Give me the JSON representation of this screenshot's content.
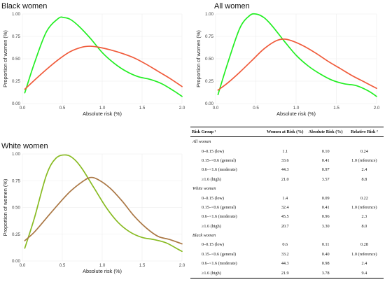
{
  "colors": {
    "green": "#22ee22",
    "red": "#f05a3a",
    "olive_green": "#88bb22",
    "brown": "#aa7744"
  },
  "chart_data": [
    {
      "type": "line",
      "title": "Black women",
      "xlabel": "Absolute risk (%)",
      "ylabel": "Proportion of women (%)",
      "xlim": [
        0,
        2.0
      ],
      "ylim": [
        0,
        1.0
      ],
      "xticks": [
        "0.0",
        "0.5",
        "1.0",
        "1.5",
        "2.0"
      ],
      "yticks": [
        "0.00",
        "0.25",
        "0.50",
        "0.75",
        "1.00"
      ],
      "grid": true,
      "series": [
        {
          "color": "#22ee22",
          "x": [
            0.03,
            0.15,
            0.3,
            0.45,
            0.52,
            0.6,
            0.7,
            0.85,
            1.0,
            1.15,
            1.3,
            1.45,
            1.6,
            1.75,
            1.9,
            2.0
          ],
          "y": [
            0.12,
            0.45,
            0.8,
            0.95,
            0.96,
            0.94,
            0.87,
            0.73,
            0.57,
            0.45,
            0.36,
            0.3,
            0.27,
            0.22,
            0.14,
            0.08
          ]
        },
        {
          "color": "#f05a3a",
          "x": [
            0.03,
            0.15,
            0.3,
            0.45,
            0.6,
            0.75,
            0.85,
            0.95,
            1.1,
            1.25,
            1.4,
            1.55,
            1.7,
            1.85,
            2.0
          ],
          "y": [
            0.16,
            0.26,
            0.38,
            0.49,
            0.58,
            0.63,
            0.64,
            0.63,
            0.6,
            0.56,
            0.51,
            0.44,
            0.36,
            0.28,
            0.19
          ]
        }
      ]
    },
    {
      "type": "line",
      "title": "All women",
      "xlabel": "Absolute risk (%)",
      "ylabel": "Proportion of women (%)",
      "xlim": [
        0,
        2.0
      ],
      "ylim": [
        0,
        1.0
      ],
      "xticks": [
        "0.0",
        "0.5",
        "1.0",
        "1.5",
        "2.0"
      ],
      "yticks": [
        "0.00",
        "0.25",
        "0.50",
        "0.75",
        "1.00"
      ],
      "grid": true,
      "series": [
        {
          "color": "#22ee22",
          "x": [
            0.03,
            0.15,
            0.3,
            0.42,
            0.5,
            0.6,
            0.7,
            0.85,
            1.0,
            1.15,
            1.3,
            1.45,
            1.6,
            1.75,
            1.9,
            2.0
          ],
          "y": [
            0.1,
            0.45,
            0.84,
            0.98,
            1.0,
            0.96,
            0.87,
            0.7,
            0.54,
            0.42,
            0.33,
            0.26,
            0.22,
            0.2,
            0.14,
            0.08
          ]
        },
        {
          "color": "#f05a3a",
          "x": [
            0.03,
            0.15,
            0.3,
            0.45,
            0.6,
            0.75,
            0.85,
            0.95,
            1.1,
            1.25,
            1.4,
            1.55,
            1.7,
            1.85,
            2.0
          ],
          "y": [
            0.15,
            0.23,
            0.35,
            0.48,
            0.61,
            0.7,
            0.72,
            0.7,
            0.64,
            0.56,
            0.47,
            0.39,
            0.31,
            0.24,
            0.17
          ]
        }
      ]
    },
    {
      "type": "line",
      "title": "White women",
      "xlabel": "Absolute risk (%)",
      "ylabel": "Proportion of women (%)",
      "xlim": [
        0,
        2.0
      ],
      "ylim": [
        0,
        1.0
      ],
      "xticks": [
        "0.0",
        "0.5",
        "1.0",
        "1.5",
        "2.0"
      ],
      "yticks": [
        "0.00",
        "0.25",
        "0.50",
        "0.75",
        "1.00"
      ],
      "grid": true,
      "series": [
        {
          "color": "#88bb22",
          "x": [
            0.03,
            0.15,
            0.3,
            0.42,
            0.55,
            0.65,
            0.75,
            0.9,
            1.05,
            1.2,
            1.35,
            1.5,
            1.65,
            1.8,
            1.95,
            2.0
          ],
          "y": [
            0.12,
            0.4,
            0.8,
            0.96,
            0.99,
            0.95,
            0.86,
            0.68,
            0.5,
            0.36,
            0.27,
            0.22,
            0.2,
            0.17,
            0.11,
            0.09
          ]
        },
        {
          "color": "#aa7744",
          "x": [
            0.03,
            0.15,
            0.3,
            0.45,
            0.6,
            0.75,
            0.85,
            0.95,
            1.1,
            1.25,
            1.4,
            1.55,
            1.7,
            1.85,
            2.0
          ],
          "y": [
            0.19,
            0.27,
            0.4,
            0.53,
            0.65,
            0.74,
            0.78,
            0.76,
            0.68,
            0.56,
            0.42,
            0.31,
            0.23,
            0.2,
            0.16
          ]
        }
      ]
    },
    {
      "type": "table",
      "columns": [
        "Risk Group ¹",
        "Women at Risk (%)",
        "Absolute Risk (%)",
        "Relative Risk ²"
      ],
      "sections": [
        {
          "name": "All women",
          "rows": [
            [
              "0–0.15 (low)",
              "1.1",
              "0.10",
              "0.24"
            ],
            [
              "0.15–<0.6 (general)",
              "33.6",
              "0.41",
              "1.0 (reference)"
            ],
            [
              "0.6–<1.6 (moderate)",
              "44.3",
              "0.97",
              "2.4"
            ],
            [
              "≥1.6 (high)",
              "21.0",
              "3.57",
              "8.8"
            ]
          ]
        },
        {
          "name": "White women",
          "rows": [
            [
              "0–0.15 (low)",
              "1.4",
              "0.09",
              "0.22"
            ],
            [
              "0.15–<0.6 (general)",
              "32.4",
              "0.41",
              "1.0 (reference)"
            ],
            [
              "0.6–<1.6 (moderate)",
              "45.5",
              "0.96",
              "2.3"
            ],
            [
              "≥1.6 (high)",
              "20.7",
              "3.30",
              "8.0"
            ]
          ]
        },
        {
          "name": "Black women",
          "rows": [
            [
              "0–0.15 (low)",
              "0.6",
              "0.11",
              "0.28"
            ],
            [
              "0.15–<0.6 (general)",
              "33.2",
              "0.40",
              "1.0 (reference)"
            ],
            [
              "0.6–<1.6 (moderate)",
              "44.3",
              "0.98",
              "2.4"
            ],
            [
              "≥1.6 (high)",
              "21.9",
              "3.78",
              "9.4"
            ]
          ]
        }
      ]
    }
  ]
}
